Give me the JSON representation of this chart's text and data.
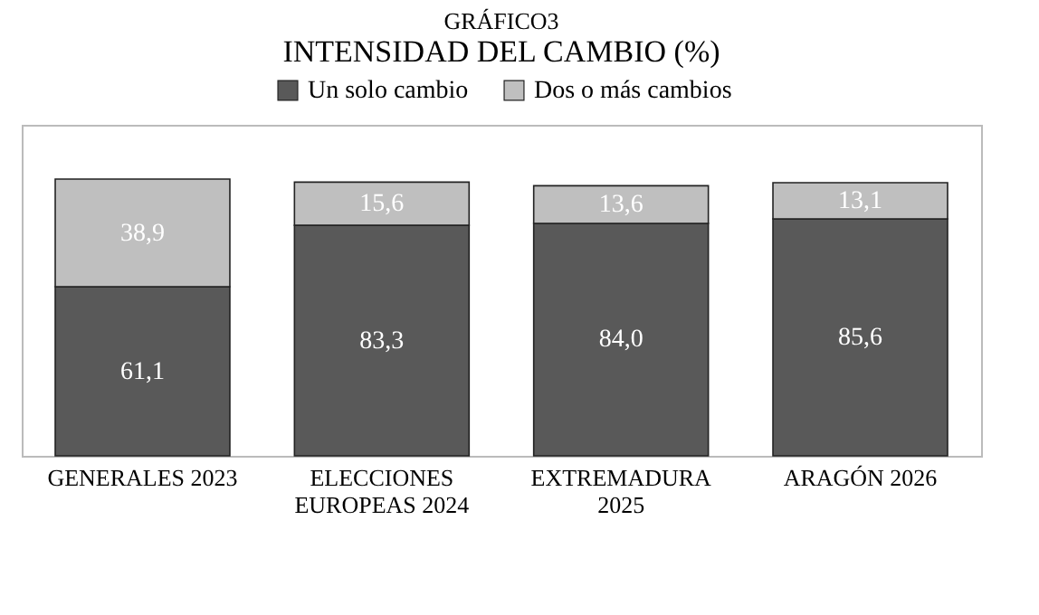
{
  "chart_data": {
    "type": "bar",
    "title": "GRÁFICO3",
    "subtitle": "INTENSIDAD DEL CAMBIO (%)",
    "categories": [
      "GENERALES 2023",
      "ELECCIONES EUROPEAS 2024",
      "EXTREMADURA 2025",
      "ARAGÓN 2026"
    ],
    "series": [
      {
        "name": "Un solo cambio",
        "color": "#595959",
        "values": [
          61.1,
          83.3,
          84.0,
          85.6
        ],
        "value_labels": [
          "61,1",
          "83,3",
          "84,0",
          "85,6"
        ]
      },
      {
        "name": "Dos o más cambios",
        "color": "#bfbfbf",
        "values": [
          38.9,
          15.6,
          13.6,
          13.1
        ],
        "value_labels": [
          "38,9",
          "15,6",
          "13,6",
          "13,1"
        ]
      }
    ],
    "stacked": true,
    "tick_labels": "x",
    "legend": "top",
    "grid": false
  }
}
